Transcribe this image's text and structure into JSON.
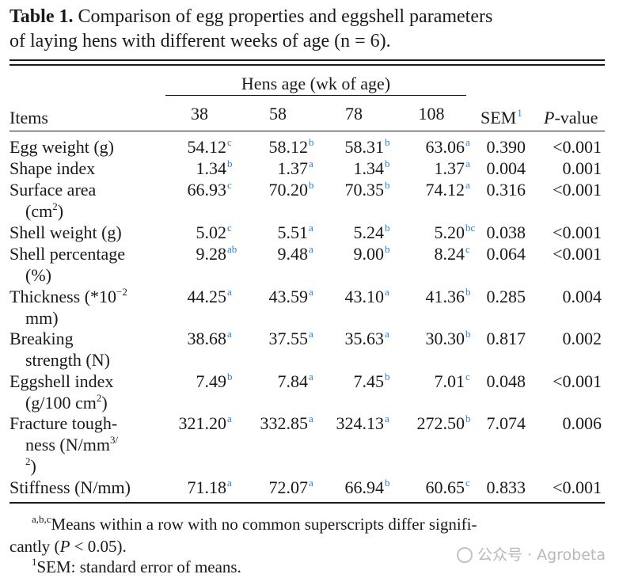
{
  "caption": {
    "label": "Table 1.",
    "line1": "Comparison of egg properties and eggshell parameters",
    "line2": "of laying hens with different weeks of age (n = 6)."
  },
  "header": {
    "group": "Hens age (wk of age)",
    "items": "Items",
    "ages": [
      "38",
      "58",
      "78",
      "108"
    ],
    "sem": "SEM",
    "sem_sup": "1",
    "pvalue_italic": "P",
    "pvalue_rest": "-value"
  },
  "rows": [
    {
      "label": [
        "Egg weight (g)"
      ],
      "vals": [
        [
          "54.12",
          "c"
        ],
        [
          "58.12",
          "b"
        ],
        [
          "58.31",
          "b"
        ],
        [
          "63.06",
          "a"
        ]
      ],
      "sem": "0.390",
      "p": "<0.001"
    },
    {
      "label": [
        "Shape index"
      ],
      "vals": [
        [
          "1.34",
          "b"
        ],
        [
          "1.37",
          "a"
        ],
        [
          "1.34",
          "b"
        ],
        [
          "1.37",
          "a"
        ]
      ],
      "sem": "0.004",
      "p": "0.001"
    },
    {
      "label": [
        "Surface area",
        "(cm",
        "2",
        ")"
      ],
      "vals": [
        [
          "66.93",
          "c"
        ],
        [
          "70.20",
          "b"
        ],
        [
          "70.35",
          "b"
        ],
        [
          "74.12",
          "a"
        ]
      ],
      "sem": "0.316",
      "p": "<0.001"
    },
    {
      "label": [
        "Shell weight (g)"
      ],
      "vals": [
        [
          "5.02",
          "c"
        ],
        [
          "5.51",
          "a"
        ],
        [
          "5.24",
          "b"
        ],
        [
          "5.20",
          "bc"
        ]
      ],
      "sem": "0.038",
      "p": "<0.001"
    },
    {
      "label": [
        "Shell percentage",
        "(%)"
      ],
      "vals": [
        [
          "9.28",
          "ab"
        ],
        [
          "9.48",
          "a"
        ],
        [
          "9.00",
          "b"
        ],
        [
          "8.24",
          "c"
        ]
      ],
      "sem": "0.064",
      "p": "<0.001"
    },
    {
      "label": [
        "Thickness (*10",
        "−2",
        "mm)"
      ],
      "vals": [
        [
          "44.25",
          "a"
        ],
        [
          "43.59",
          "a"
        ],
        [
          "43.10",
          "a"
        ],
        [
          "41.36",
          "b"
        ]
      ],
      "sem": "0.285",
      "p": "0.004"
    },
    {
      "label": [
        "Breaking",
        "strength (N)"
      ],
      "vals": [
        [
          "38.68",
          "a"
        ],
        [
          "37.55",
          "a"
        ],
        [
          "35.63",
          "a"
        ],
        [
          "30.30",
          "b"
        ]
      ],
      "sem": "0.817",
      "p": "0.002"
    },
    {
      "label": [
        "Eggshell index",
        "(g/100 cm",
        "2",
        ")"
      ],
      "vals": [
        [
          "7.49",
          "b"
        ],
        [
          "7.84",
          "a"
        ],
        [
          "7.45",
          "b"
        ],
        [
          "7.01",
          "c"
        ]
      ],
      "sem": "0.048",
      "p": "<0.001"
    },
    {
      "label": [
        "Fracture tough-",
        "ness (N/mm",
        "3/",
        "2",
        ")"
      ],
      "vals": [
        [
          "321.20",
          "a"
        ],
        [
          "332.85",
          "a"
        ],
        [
          "324.13",
          "a"
        ],
        [
          "272.50",
          "b"
        ]
      ],
      "sem": "7.074",
      "p": "0.006"
    },
    {
      "label": [
        "Stiffness (N/mm)"
      ],
      "vals": [
        [
          "71.18",
          "a"
        ],
        [
          "72.07",
          "a"
        ],
        [
          "66.94",
          "b"
        ],
        [
          "60.65",
          "c"
        ]
      ],
      "sem": "0.833",
      "p": "<0.001"
    }
  ],
  "footnotes": {
    "note1_sup": "a,b,c",
    "note1_line1": "Means within a row with no common superscripts differ signifi-",
    "note1_line2_pre": "cantly (",
    "note1_line2_p": "P",
    "note1_line2_post": " < 0.05).",
    "note2_sup": "1",
    "note2_text": "SEM: standard error of means."
  },
  "watermark": {
    "text": "公众号 · Agrobeta"
  },
  "accent_color": "#2b7fd0"
}
